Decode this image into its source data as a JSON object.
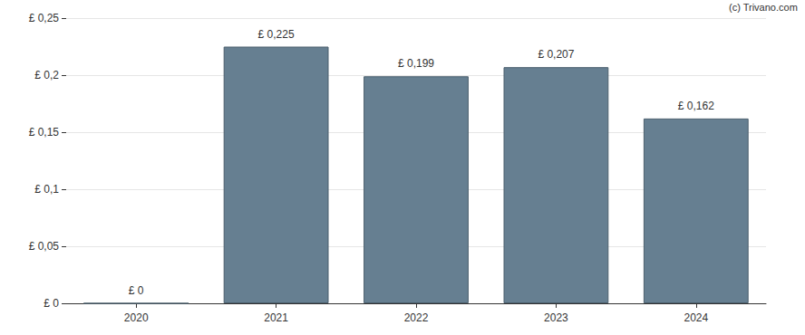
{
  "chart_data": {
    "type": "bar",
    "categories": [
      "2020",
      "2021",
      "2022",
      "2023",
      "2024"
    ],
    "values": [
      0,
      0.225,
      0.199,
      0.207,
      0.162
    ],
    "value_labels": [
      "£ 0",
      "£ 0,225",
      "£ 0,199",
      "£ 0,207",
      "£ 0,162"
    ],
    "data_labels": true,
    "color": "#667f91",
    "ylim": [
      0,
      0.25
    ],
    "yticks": [
      {
        "value": 0,
        "label": "£ 0"
      },
      {
        "value": 0.05,
        "label": "£ 0,05"
      },
      {
        "value": 0.1,
        "label": "£ 0,1"
      },
      {
        "value": 0.15,
        "label": "£ 0,15"
      },
      {
        "value": 0.2,
        "label": "£ 0,2"
      },
      {
        "value": 0.25,
        "label": "£ 0,25"
      }
    ],
    "grid": true,
    "annotations": [
      "(c) Trivano.com"
    ]
  }
}
